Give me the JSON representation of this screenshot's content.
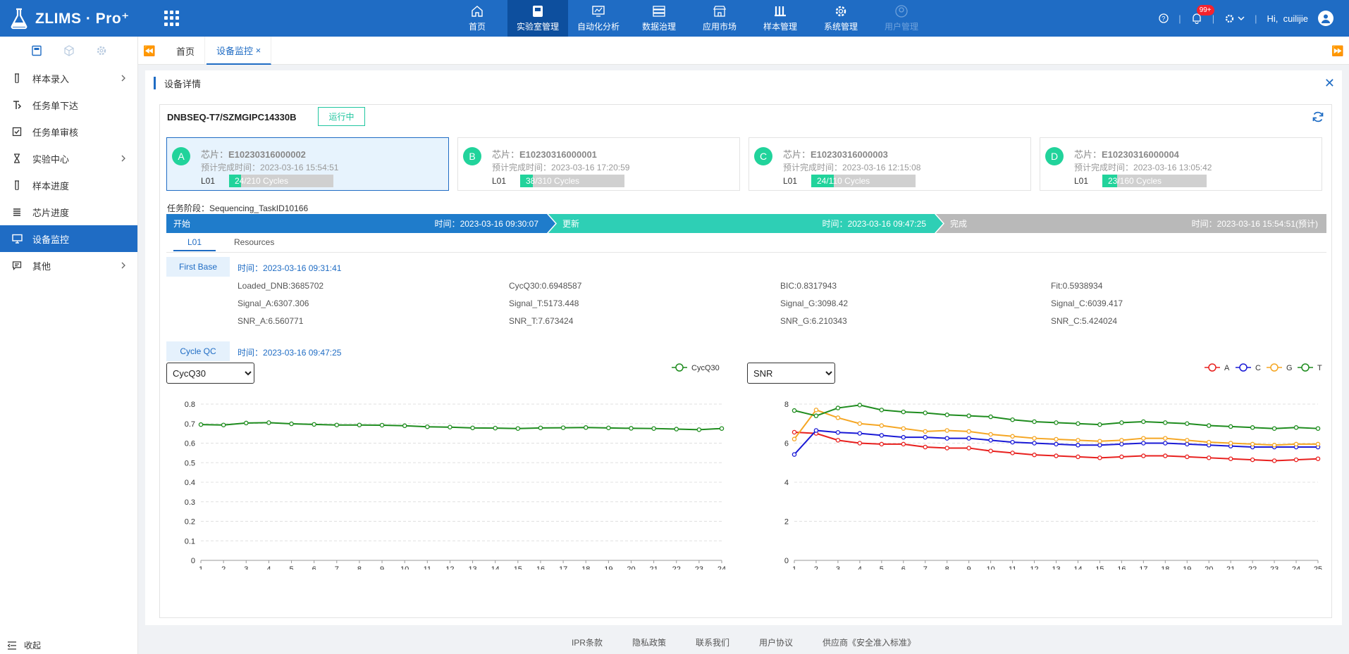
{
  "app": {
    "logo_text": "ZLIMS · Pro⁺",
    "greeting": "Hi,",
    "user": "cuilijie",
    "notif_badge": "99+"
  },
  "nav": [
    {
      "label": "首页",
      "icon": "home-icon"
    },
    {
      "label": "实验室管理",
      "icon": "lab-icon"
    },
    {
      "label": "自动化分析",
      "icon": "monitor-icon"
    },
    {
      "label": "数据治理",
      "icon": "server-icon"
    },
    {
      "label": "应用市场",
      "icon": "store-icon"
    },
    {
      "label": "样本管理",
      "icon": "sample-icon"
    },
    {
      "label": "系统管理",
      "icon": "gear-icon"
    },
    {
      "label": "用户管理",
      "icon": "user-icon"
    }
  ],
  "sidebar": {
    "items": [
      {
        "label": "样本录入"
      },
      {
        "label": "任务单下达"
      },
      {
        "label": "任务单审核"
      },
      {
        "label": "实验中心"
      },
      {
        "label": "样本进度"
      },
      {
        "label": "芯片进度"
      },
      {
        "label": "设备监控"
      },
      {
        "label": "其他"
      }
    ],
    "collapse_label": "收起"
  },
  "tabs": {
    "home": "首页",
    "current": "设备监控",
    "close": "×"
  },
  "panel": {
    "title": "设备详情",
    "device": "DNBSEQ-T7/SZMGIPC14330B",
    "status": "运行中",
    "stage_label": "任务阶段：",
    "task_id": "Sequencing_TaskID10166"
  },
  "chips": [
    {
      "letter": "A",
      "label": "芯片：",
      "id": "E10230316000002",
      "eta_label": "预计完成时间：",
      "eta": "2023-03-16 15:54:51",
      "lane": "L01",
      "cycles": "24/210 Cycles",
      "progress": 0.114
    },
    {
      "letter": "B",
      "label": "芯片：",
      "id": "E10230316000001",
      "eta_label": "预计完成时间：",
      "eta": "2023-03-16 17:20:59",
      "lane": "L01",
      "cycles": "38/310 Cycles",
      "progress": 0.123
    },
    {
      "letter": "C",
      "label": "芯片：",
      "id": "E10230316000003",
      "eta_label": "预计完成时间：",
      "eta": "2023-03-16 12:15:08",
      "lane": "L01",
      "cycles": "24/110 Cycles",
      "progress": 0.218
    },
    {
      "letter": "D",
      "label": "芯片：",
      "id": "E10230316000004",
      "eta_label": "预计完成时间：",
      "eta": "2023-03-16 13:05:42",
      "lane": "L01",
      "cycles": "23/160 Cycles",
      "progress": 0.144
    }
  ],
  "stages": [
    {
      "name": "开始",
      "time_label": "时间：",
      "time": "2023-03-16 09:30:07",
      "color": "#1f7ccb"
    },
    {
      "name": "更新",
      "time_label": "时间：",
      "time": "2023-03-16 09:47:25",
      "color": "#2ecfb5"
    },
    {
      "name": "完成",
      "time_label": "时间：",
      "time": "2023-03-16 15:54:51(预计)",
      "color": "#b9b9b9"
    }
  ],
  "subtabs": [
    "L01",
    "Resources"
  ],
  "first_base": {
    "tag": "First Base",
    "time_label": "时间：",
    "time": "2023-03-16 09:31:41",
    "metrics": [
      "Loaded_DNB:3685702",
      "CycQ30:0.6948587",
      "BIC:0.8317943",
      "Fit:0.5938934",
      "Signal_A:6307.306",
      "Signal_T:5173.448",
      "Signal_G:3098.42",
      "Signal_C:6039.417",
      "SNR_A:6.560771",
      "SNR_T:7.673424",
      "SNR_G:6.210343",
      "SNR_C:5.424024"
    ]
  },
  "cycle_qc": {
    "tag": "Cycle QC",
    "time_label": "时间：",
    "time": "2023-03-16 09:47:25"
  },
  "selects": {
    "left": "CycQ30",
    "right": "SNR"
  },
  "chart_data": [
    {
      "type": "line",
      "x": [
        1,
        2,
        3,
        4,
        5,
        6,
        7,
        8,
        9,
        10,
        11,
        12,
        13,
        14,
        15,
        16,
        17,
        18,
        19,
        20,
        21,
        22,
        23,
        24
      ],
      "ylim": [
        0,
        0.8
      ],
      "yticks": [
        "0.8",
        "0.7",
        "0.6",
        "0.5",
        "0.4",
        "0.3",
        "0.2",
        "0.1",
        "0"
      ],
      "series": [
        {
          "name": "CycQ30",
          "color": "#1e8c1e",
          "values": [
            0.695,
            0.693,
            0.703,
            0.705,
            0.699,
            0.696,
            0.693,
            0.693,
            0.692,
            0.689,
            0.684,
            0.682,
            0.678,
            0.677,
            0.675,
            0.678,
            0.679,
            0.68,
            0.678,
            0.676,
            0.675,
            0.672,
            0.669,
            0.675
          ]
        }
      ]
    },
    {
      "type": "line",
      "x": [
        1,
        2,
        3,
        4,
        5,
        6,
        7,
        8,
        9,
        10,
        11,
        12,
        13,
        14,
        15,
        16,
        17,
        18,
        19,
        20,
        21,
        22,
        23,
        24,
        25
      ],
      "ylim": [
        0,
        8
      ],
      "yticks": [
        "8",
        "6",
        "4",
        "2",
        "0"
      ],
      "series": [
        {
          "name": "A",
          "color": "#e8201e",
          "values": [
            6.56,
            6.5,
            6.15,
            6.0,
            5.95,
            5.95,
            5.8,
            5.75,
            5.75,
            5.6,
            5.5,
            5.4,
            5.35,
            5.3,
            5.25,
            5.3,
            5.35,
            5.35,
            5.3,
            5.25,
            5.2,
            5.15,
            5.1,
            5.15,
            5.2
          ]
        },
        {
          "name": "C",
          "color": "#1a1ad6",
          "values": [
            5.42,
            6.65,
            6.55,
            6.5,
            6.4,
            6.3,
            6.3,
            6.25,
            6.25,
            6.15,
            6.05,
            6.0,
            5.95,
            5.9,
            5.9,
            5.95,
            6.0,
            6.0,
            5.95,
            5.9,
            5.85,
            5.8,
            5.8,
            5.8,
            5.8
          ]
        },
        {
          "name": "G",
          "color": "#f5a623",
          "values": [
            6.21,
            7.7,
            7.3,
            7.0,
            6.9,
            6.75,
            6.6,
            6.65,
            6.6,
            6.45,
            6.35,
            6.25,
            6.2,
            6.15,
            6.1,
            6.15,
            6.25,
            6.25,
            6.15,
            6.05,
            6.0,
            5.95,
            5.9,
            5.95,
            5.95
          ]
        },
        {
          "name": "T",
          "color": "#1e8c1e",
          "values": [
            7.67,
            7.4,
            7.8,
            7.95,
            7.7,
            7.6,
            7.55,
            7.45,
            7.4,
            7.35,
            7.2,
            7.1,
            7.05,
            7.0,
            6.95,
            7.05,
            7.1,
            7.05,
            7.0,
            6.9,
            6.85,
            6.8,
            6.75,
            6.8,
            6.75
          ]
        }
      ]
    }
  ],
  "footer": [
    "IPR条款",
    "隐私政策",
    "联系我们",
    "用户协议",
    "供应商《安全准入标准》"
  ]
}
